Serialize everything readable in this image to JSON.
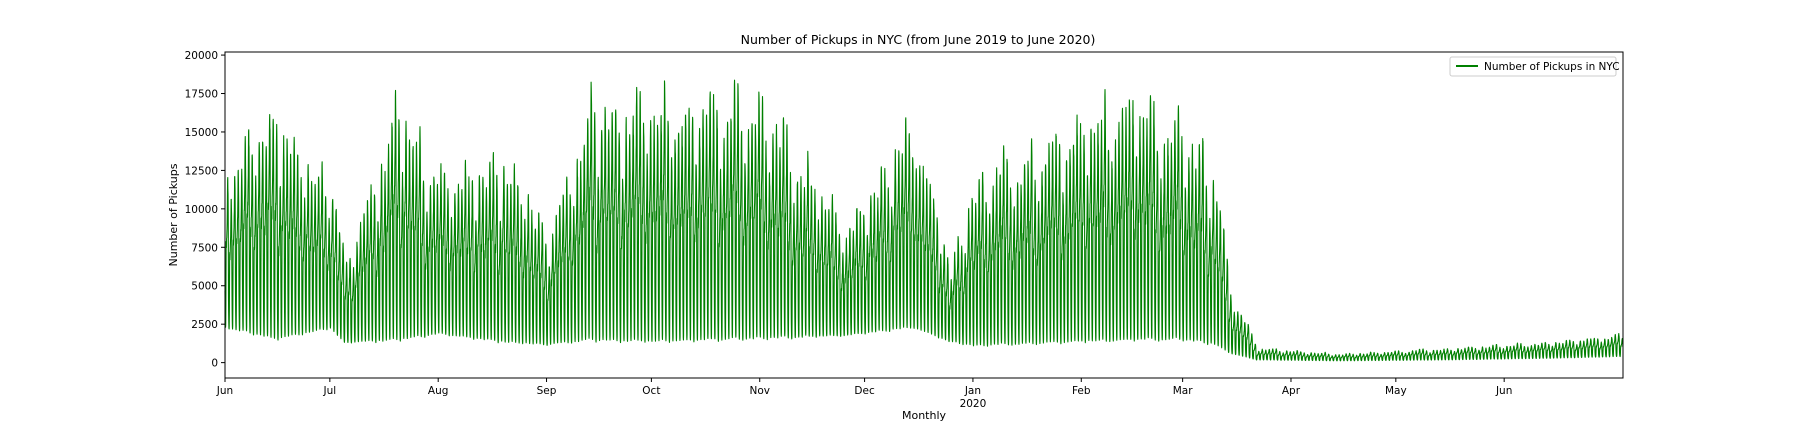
{
  "chart_data": {
    "type": "line",
    "title": "Number of Pickups in NYC  (from June 2019 to June 2020)",
    "xlabel": "Monthly",
    "ylabel": "Number of Pickups",
    "ylim": [
      -1000,
      20200
    ],
    "xlim": [
      "2019-06-01",
      "2020-07-05"
    ],
    "y_ticks": [
      0,
      2500,
      5000,
      7500,
      10000,
      12500,
      15000,
      17500,
      20000
    ],
    "x_ticks": [
      {
        "date": "2019-06-01",
        "label": "Jun"
      },
      {
        "date": "2019-07-01",
        "label": "Jul"
      },
      {
        "date": "2019-08-01",
        "label": "Aug"
      },
      {
        "date": "2019-09-01",
        "label": "Sep"
      },
      {
        "date": "2019-10-01",
        "label": "Oct"
      },
      {
        "date": "2019-11-01",
        "label": "Nov"
      },
      {
        "date": "2019-12-01",
        "label": "Dec"
      },
      {
        "date": "2020-01-01",
        "label": "Jan",
        "sublabel": "2020"
      },
      {
        "date": "2020-02-01",
        "label": "Feb"
      },
      {
        "date": "2020-03-01",
        "label": "Mar"
      },
      {
        "date": "2020-04-01",
        "label": "Apr"
      },
      {
        "date": "2020-05-01",
        "label": "May"
      },
      {
        "date": "2020-06-01",
        "label": "Jun"
      }
    ],
    "grid": false,
    "legend": {
      "position": "upper-right"
    },
    "series": [
      {
        "name": "Number of Pickups in NYC",
        "color": "#008000",
        "frequency": "hourly",
        "daily_envelope": [
          {
            "date": "2019-06-01",
            "low": 1900,
            "high": 14300
          },
          {
            "date": "2019-06-15",
            "low": 1000,
            "high": 17900
          },
          {
            "date": "2019-07-01",
            "low": 1900,
            "high": 12800
          },
          {
            "date": "2019-07-05",
            "low": 1100,
            "high": 7400
          },
          {
            "date": "2019-07-20",
            "low": 900,
            "high": 18700
          },
          {
            "date": "2019-08-01",
            "low": 1500,
            "high": 13000
          },
          {
            "date": "2019-08-20",
            "low": 900,
            "high": 15000
          },
          {
            "date": "2019-09-01",
            "low": 900,
            "high": 9500
          },
          {
            "date": "2019-09-13",
            "low": 900,
            "high": 19000
          },
          {
            "date": "2019-10-01",
            "low": 800,
            "high": 18800
          },
          {
            "date": "2019-11-01",
            "low": 1000,
            "high": 19200
          },
          {
            "date": "2019-11-25",
            "low": 1500,
            "high": 9800
          },
          {
            "date": "2019-12-15",
            "low": 1800,
            "high": 17600
          },
          {
            "date": "2019-12-25",
            "low": 1200,
            "high": 6500
          },
          {
            "date": "2020-01-01",
            "low": 700,
            "high": 13500
          },
          {
            "date": "2020-02-15",
            "low": 900,
            "high": 19300
          },
          {
            "date": "2020-03-01",
            "low": 1000,
            "high": 17500
          },
          {
            "date": "2020-03-10",
            "low": 800,
            "high": 13400
          },
          {
            "date": "2020-03-14",
            "low": 500,
            "high": 5300
          },
          {
            "date": "2020-03-22",
            "low": 150,
            "high": 1000
          },
          {
            "date": "2020-04-15",
            "low": 100,
            "high": 600
          },
          {
            "date": "2020-05-15",
            "low": 150,
            "high": 1000
          },
          {
            "date": "2020-06-15",
            "low": 250,
            "high": 1500
          },
          {
            "date": "2020-07-05",
            "low": 350,
            "high": 2000
          }
        ]
      }
    ]
  }
}
